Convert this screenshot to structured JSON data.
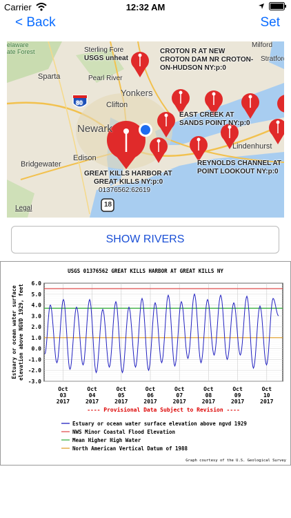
{
  "status_bar": {
    "carrier": "Carrier",
    "time": "12:32 AM",
    "icons": [
      "wifi-icon",
      "location-icon",
      "battery-icon"
    ]
  },
  "nav": {
    "back_label": "< Back",
    "set_label": "Set"
  },
  "map": {
    "station_labels": [
      "Sterling Fore",
      "USGS unheat",
      "CROTON R AT NEW",
      "CROTON DAM NR CROTON-",
      "ON-HUDSON NY:p:0",
      "EAST CREEK AT",
      "SANDS POINT NY:p:0",
      "REYNOLDS CHANNEL AT",
      "POINT LOOKOUT NY:p:0",
      "GREAT KILLS HARBOR AT",
      "GREAT KILLS NY:p:0",
      "01376562:62619"
    ],
    "place_labels": [
      "elaware",
      "ate Forest",
      "Sparta",
      "Pearl River",
      "Yonkers",
      "Clifton",
      "Newark",
      "Edison",
      "Bridgewater",
      "Lindenhurst",
      "Milford",
      "Stratford",
      "Legal",
      "80",
      "18"
    ]
  },
  "button": {
    "show_rivers": "SHOW RIVERS"
  },
  "chart_data": {
    "type": "line",
    "title": "USGS 01376562 GREAT KILLS HARBOR AT GREAT KILLS NY",
    "ylabel_lines": [
      "Estuary or ocean water surface",
      "elevation above NGVD 1929, feet"
    ],
    "ylim": [
      -3.0,
      6.0
    ],
    "yticks": [
      "6.0",
      "5.0",
      "4.0",
      "3.0",
      "2.0",
      "1.0",
      "0.0",
      "-1.0",
      "-2.0",
      "-3.0"
    ],
    "xticks": [
      {
        "m": "Oct",
        "d": "03",
        "y": "2017"
      },
      {
        "m": "Oct",
        "d": "04",
        "y": "2017"
      },
      {
        "m": "Oct",
        "d": "05",
        "y": "2017"
      },
      {
        "m": "Oct",
        "d": "06",
        "y": "2017"
      },
      {
        "m": "Oct",
        "d": "07",
        "y": "2017"
      },
      {
        "m": "Oct",
        "d": "08",
        "y": "2017"
      },
      {
        "m": "Oct",
        "d": "09",
        "y": "2017"
      },
      {
        "m": "Oct",
        "d": "10",
        "y": "2017"
      }
    ],
    "provisional": "---- Provisional Data Subject to Revision ----",
    "reference_lines": [
      {
        "name": "NWS Minor Coastal Flood Elevation",
        "value": 5.5,
        "color": "#e05050"
      },
      {
        "name": "Mean Higher High Water",
        "value": 3.7,
        "color": "#3cb043"
      },
      {
        "name": "North American Vertical Datum of 1988",
        "value": 1.0,
        "color": "#e0a030"
      }
    ],
    "series": [
      {
        "name": "Estuary or ocean water surface elevation above ngvd 1929",
        "color": "#2020c0",
        "peaks": [
          4.0,
          4.5,
          3.8,
          4.5,
          3.6,
          4.3,
          3.8,
          4.6,
          4.2,
          4.9,
          4.3,
          5.0,
          4.5,
          4.9,
          4.2,
          4.8,
          3.9,
          4.6
        ],
        "troughs": [
          -1.3,
          -1.9,
          -1.5,
          -2.2,
          -1.7,
          -2.2,
          -1.7,
          -2.0,
          -1.3,
          -1.6,
          -0.9,
          -1.3,
          -0.6,
          -1.0,
          -0.6,
          -1.8,
          -1.5
        ]
      }
    ],
    "credit": "Graph courtesy of the U.S. Geological Survey"
  }
}
